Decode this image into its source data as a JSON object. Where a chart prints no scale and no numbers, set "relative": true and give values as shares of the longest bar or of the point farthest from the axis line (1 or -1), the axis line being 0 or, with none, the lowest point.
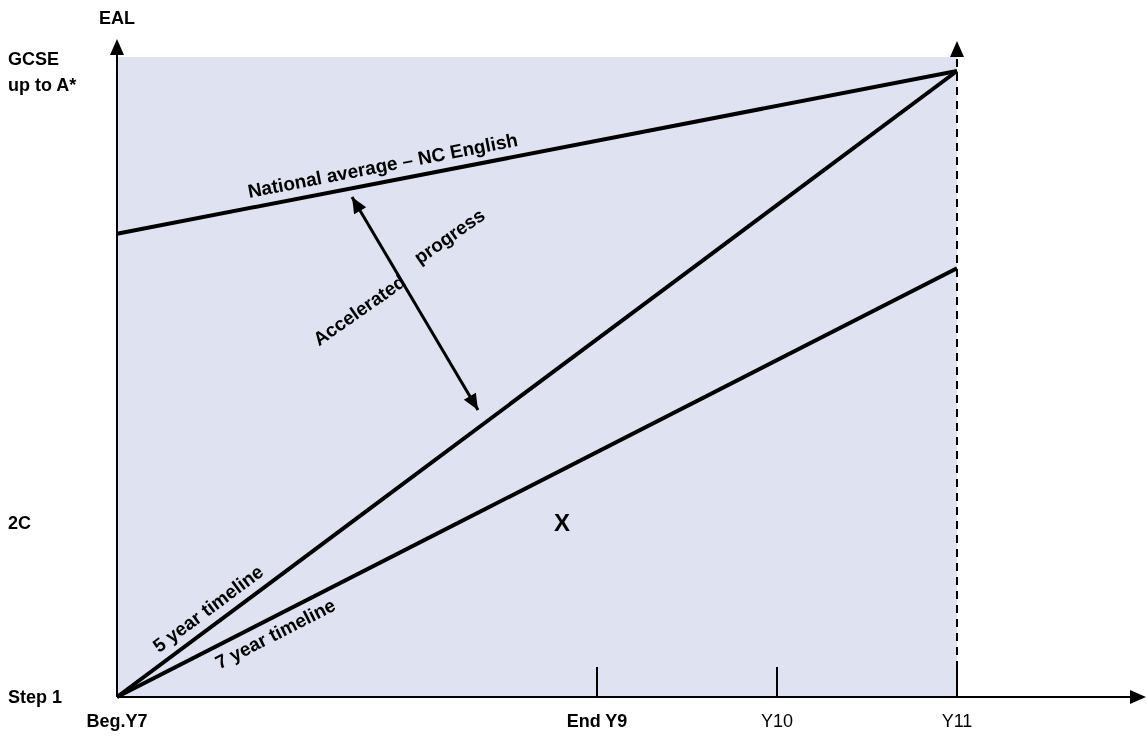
{
  "chart_data": {
    "type": "line",
    "ylabel": "EAL",
    "categories": [
      "Beg.Y7",
      null,
      null,
      null,
      null,
      null,
      null,
      null,
      "End Y9",
      null,
      null,
      "Y10",
      null,
      null,
      "Y11",
      null,
      null,
      null
    ],
    "relative": true,
    "series": [
      {
        "name": "National average – NC English",
        "color": "#000000",
        "values": [
          0.74,
          null,
          null,
          null,
          null,
          null,
          null,
          null,
          null,
          null,
          null,
          null,
          null,
          null,
          1,
          null,
          null,
          null
        ]
      },
      {
        "name": "5 year timeline",
        "color": "#000000",
        "values": [
          0,
          null,
          null,
          null,
          null,
          null,
          null,
          null,
          null,
          null,
          null,
          null,
          null,
          null,
          1,
          null,
          null,
          null
        ]
      },
      {
        "name": "7 year timeline",
        "color": "#000000",
        "values": [
          0,
          null,
          null,
          null,
          null,
          null,
          null,
          null,
          null,
          null,
          null,
          null,
          null,
          null,
          0.685,
          null,
          null,
          null
        ]
      }
    ],
    "bands": [
      {
        "axis": "x",
        "from": "Beg.Y7",
        "to": "Y11",
        "color": "#dfe2f0"
      }
    ],
    "ref_lines": [
      {
        "axis": "x",
        "value": "Y11",
        "color": "#000000",
        "line_style": "dashed"
      }
    ],
    "annotations": [
      "X",
      "Accelerated progress",
      "Step 1",
      "2C",
      "GCSE\nup to A*"
    ],
    "marker": "none",
    "line_style": "solid"
  }
}
